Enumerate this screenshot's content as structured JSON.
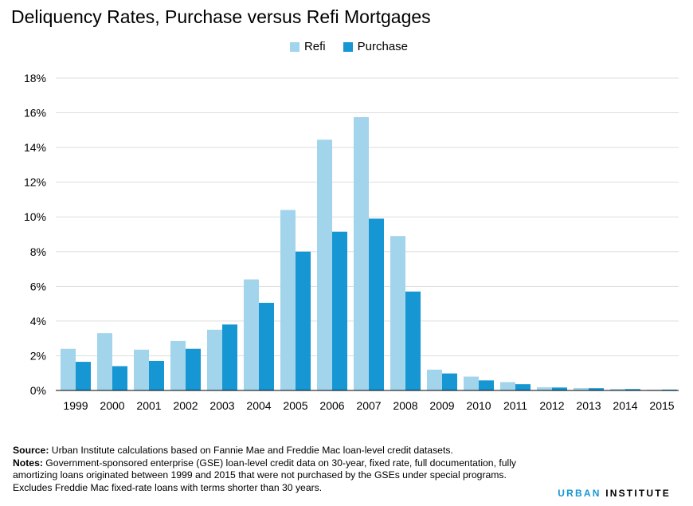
{
  "colors": {
    "refi": "#a2d4ec",
    "purchase": "#1696d2",
    "grid": "#dedddd",
    "axis": "#000000"
  },
  "chart_data": {
    "type": "bar",
    "title": "Deliquency Rates, Purchase versus Refi Mortgages",
    "categories": [
      "1999",
      "2000",
      "2001",
      "2002",
      "2003",
      "2004",
      "2005",
      "2006",
      "2007",
      "2008",
      "2009",
      "2010",
      "2011",
      "2012",
      "2013",
      "2014",
      "2015"
    ],
    "series": [
      {
        "name": "Refi",
        "values": [
          2.4,
          3.3,
          2.35,
          2.85,
          3.5,
          6.4,
          10.4,
          14.45,
          15.75,
          8.9,
          1.2,
          0.8,
          0.48,
          0.18,
          0.14,
          0.09,
          0.04
        ]
      },
      {
        "name": "Purchase",
        "values": [
          1.65,
          1.4,
          1.7,
          2.4,
          3.8,
          5.05,
          8.0,
          9.15,
          9.9,
          5.7,
          0.98,
          0.58,
          0.36,
          0.17,
          0.13,
          0.08,
          0.05
        ]
      }
    ],
    "ylim": [
      0,
      18
    ],
    "yticks": [
      0,
      2,
      4,
      6,
      8,
      10,
      12,
      14,
      16,
      18
    ],
    "ytick_labels": [
      "0%",
      "2%",
      "4%",
      "6%",
      "8%",
      "10%",
      "12%",
      "14%",
      "16%",
      "18%"
    ],
    "legend_position": "top-center",
    "grid": true,
    "xlabel": "",
    "ylabel": ""
  },
  "footer": {
    "source_label": "Source:",
    "source_text": " Urban Institute calculations based on Fannie Mae and Freddie Mac loan-level credit datasets.",
    "notes_label": "Notes:",
    "notes_text": " Government-sponsored enterprise (GSE) loan-level credit data on 30-year, fixed rate, full documentation, fully amortizing loans originated between 1999 and 2015 that were not purchased by the GSEs under special programs. Excludes Freddie Mac fixed-rate loans with terms shorter than 30 years."
  },
  "brand": {
    "part1": "URBAN",
    "part2": "INSTITUTE"
  }
}
